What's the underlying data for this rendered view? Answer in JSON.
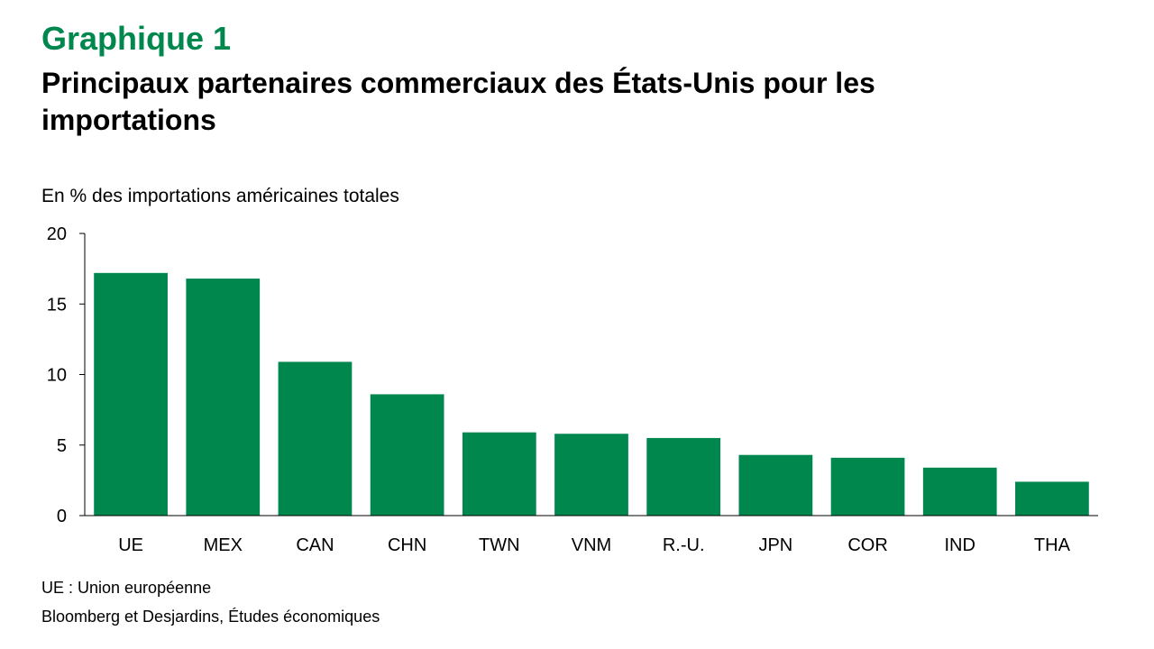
{
  "header": {
    "kicker": "Graphique 1",
    "title": "Principaux partenaires commerciaux des États-Unis pour les importations"
  },
  "unit_label": "En % des importations américaines totales",
  "footnote": "UE : Union européenne",
  "source": "Bloomberg et Desjardins, Études économiques",
  "colors": {
    "accent": "#00874E",
    "bar": "#00874E",
    "axis": "#000000"
  },
  "chart_data": {
    "type": "bar",
    "title": "Principaux partenaires commerciaux des États-Unis pour les importations",
    "ylabel": "En % des importations américaines totales",
    "xlabel": "",
    "categories": [
      "UE",
      "MEX",
      "CAN",
      "CHN",
      "TWN",
      "VNM",
      "R.-U.",
      "JPN",
      "COR",
      "IND",
      "THA"
    ],
    "values": [
      17.2,
      16.8,
      10.9,
      8.6,
      5.9,
      5.8,
      5.5,
      4.3,
      4.1,
      3.4,
      2.4
    ],
    "ylim": [
      0,
      20
    ],
    "yticks": [
      0,
      5,
      10,
      15,
      20
    ],
    "grid": false,
    "legend": "none"
  }
}
